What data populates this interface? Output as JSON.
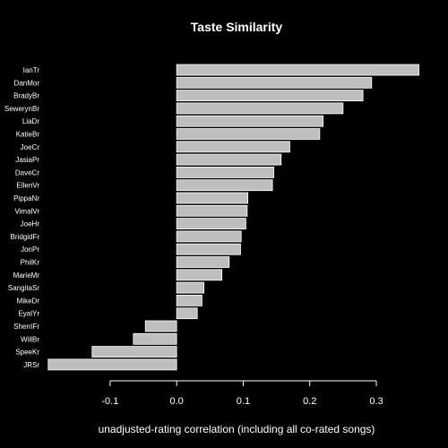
{
  "chart_data": {
    "type": "bar",
    "orientation": "horizontal",
    "title": "Taste Similarity",
    "xlabel": "unadjusted-rating correlation (including all co-rated songs)",
    "ylabel": "",
    "xlim": [
      -0.19,
      0.37
    ],
    "xticks": [
      -0.1,
      0.0,
      0.1,
      0.2,
      0.3
    ],
    "xtick_labels": [
      "-0.1",
      "0.0",
      "0.1",
      "0.2",
      "0.3"
    ],
    "grid": false,
    "categories": [
      "IanTr",
      "DanMor",
      "BradyBr",
      "SewerynBr",
      "LiaDr",
      "KatieBr",
      "JoeCr",
      "JasiaPr",
      "DaveCr",
      "EllenVr",
      "PippaNr",
      "VimalVr",
      "JoeHr",
      "BridgidFr",
      "JonPr",
      "PhilKr",
      "MarieMr",
      "SangitaSr",
      "MikeDr",
      "EyalYr",
      "SherriFr",
      "WillBr",
      "SpeeKr",
      "JRSr"
    ],
    "values": [
      0.364,
      0.293,
      0.28,
      0.25,
      0.22,
      0.215,
      0.17,
      0.157,
      0.146,
      0.144,
      0.107,
      0.106,
      0.104,
      0.097,
      0.096,
      0.079,
      0.068,
      0.041,
      0.038,
      0.031,
      -0.047,
      -0.065,
      -0.127,
      -0.193
    ],
    "colors": {
      "background": "#000000",
      "bar_fill": "#bebebe",
      "bar_stroke": "#ffffff",
      "text": "#ffffff"
    }
  }
}
